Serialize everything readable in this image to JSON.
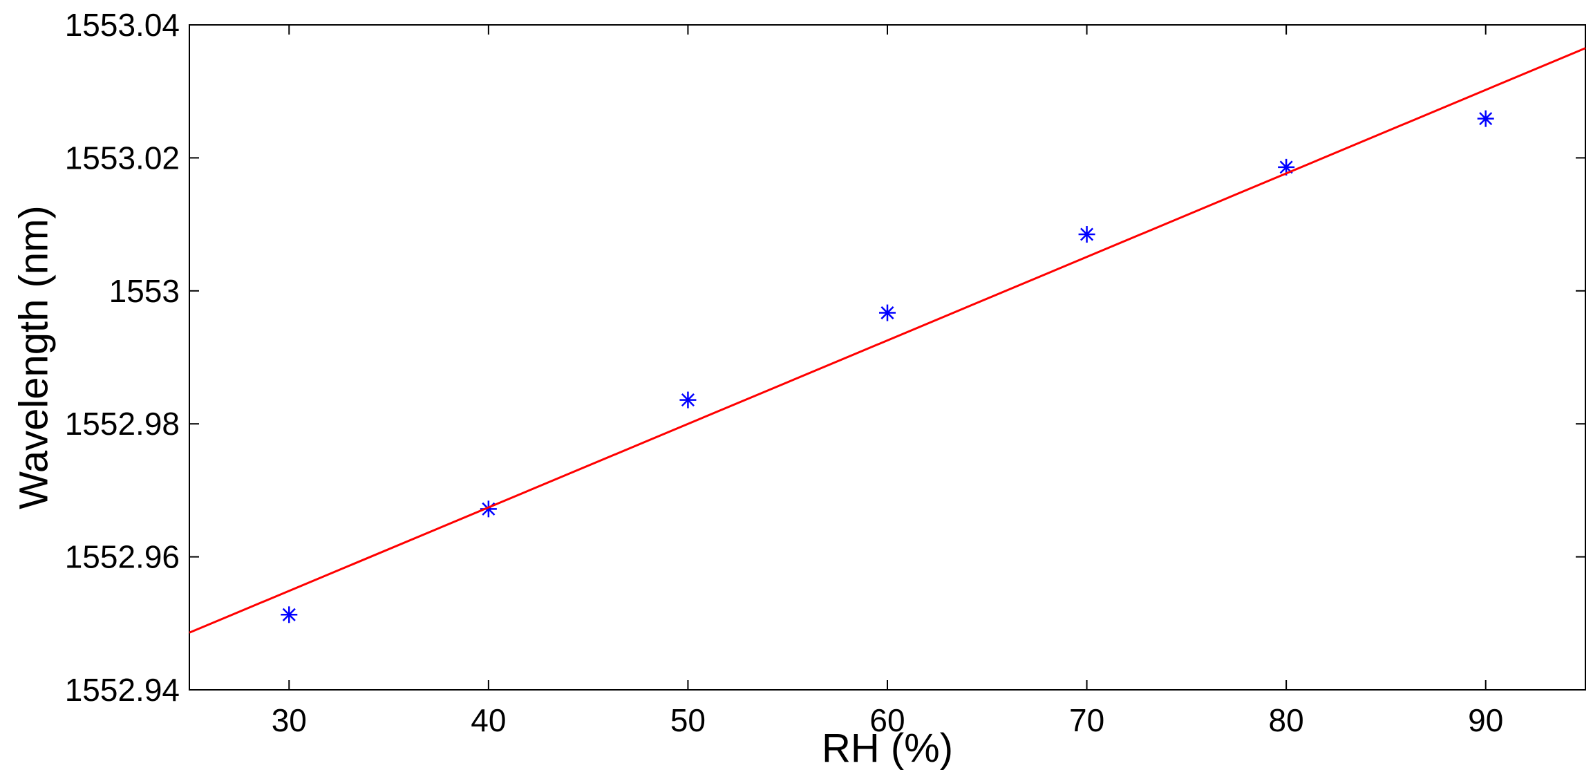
{
  "chart_data": {
    "type": "scatter",
    "title": "",
    "xlabel": "RH (%)",
    "ylabel": "Wavelength (nm)",
    "xlim": [
      25,
      95
    ],
    "ylim": [
      1552.94,
      1553.04
    ],
    "x_ticks": [
      30,
      40,
      50,
      60,
      70,
      80,
      90
    ],
    "x_tick_labels": [
      "30",
      "40",
      "50",
      "60",
      "70",
      "80",
      "90"
    ],
    "y_ticks": [
      1552.94,
      1552.96,
      1552.98,
      1553.0,
      1553.02,
      1553.04
    ],
    "y_tick_labels": [
      "1552.94",
      "1552.96",
      "1552.98",
      "1553",
      "1553.02",
      "1553.04"
    ],
    "grid": false,
    "series": [
      {
        "type": "scatter",
        "marker": "asterisk",
        "color": "#0000ff",
        "x": [
          30,
          40,
          50,
          60,
          70,
          80,
          90
        ],
        "y": [
          1552.9513,
          1552.9672,
          1552.9836,
          1552.9967,
          1553.0085,
          1553.0186,
          1553.0259
        ]
      },
      {
        "type": "line",
        "color": "#ff0000",
        "x": [
          25,
          95
        ],
        "y": [
          1552.9486,
          1553.0365
        ]
      }
    ]
  }
}
